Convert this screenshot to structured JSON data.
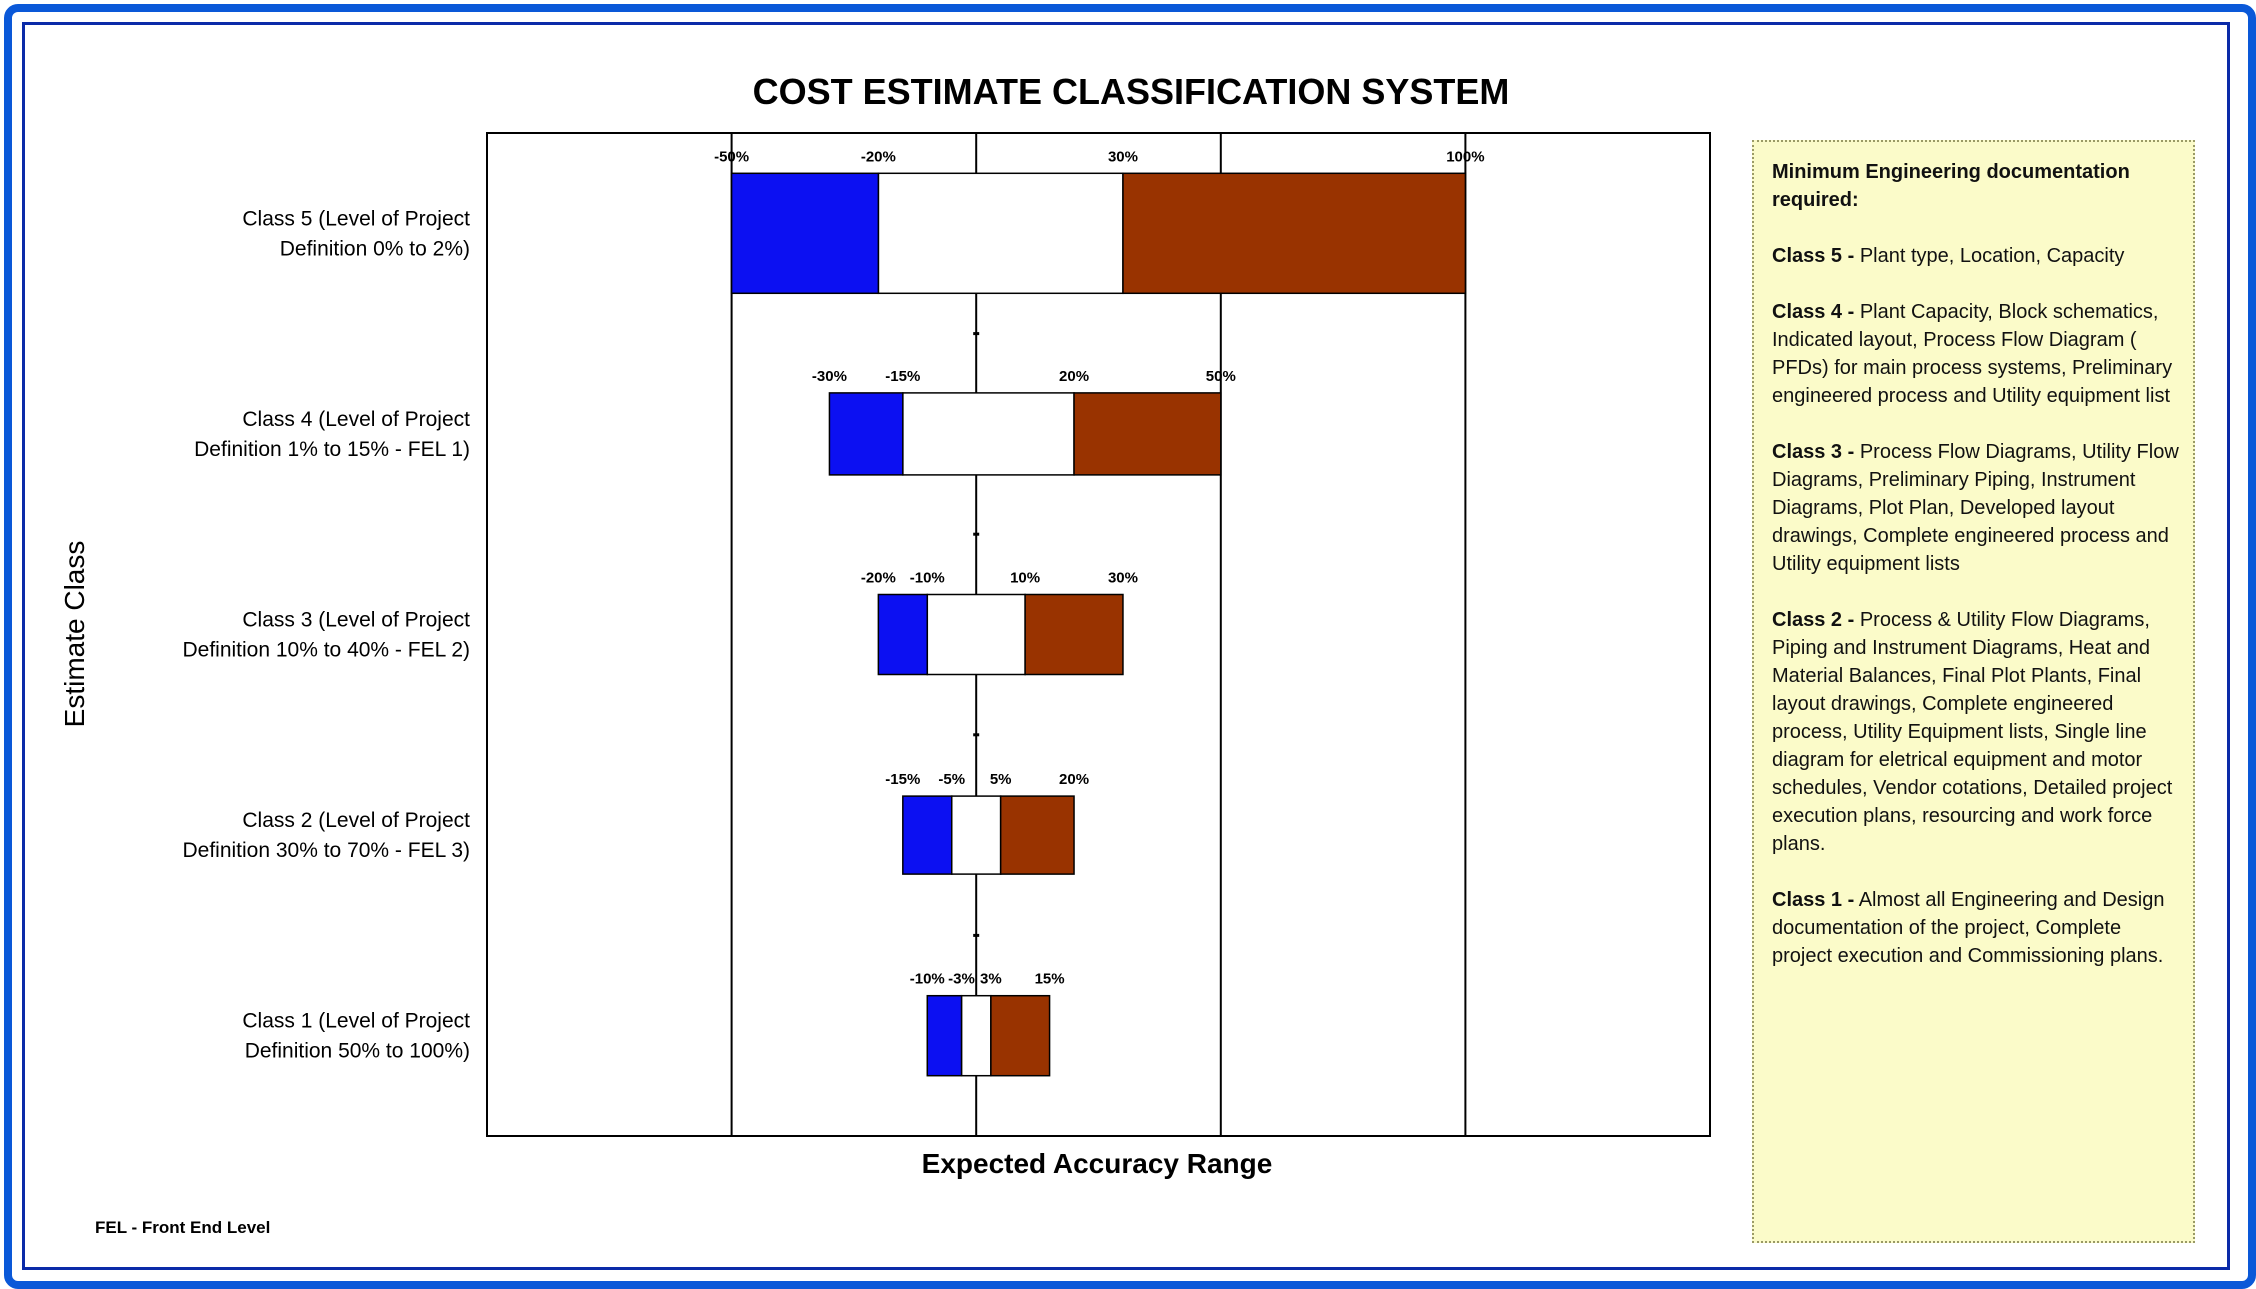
{
  "chart_data": {
    "type": "bar",
    "orientation": "horizontal",
    "title": "COST ESTIMATE CLASSIFICATION SYSTEM",
    "xlabel": "Expected Accuracy Range",
    "ylabel": "Estimate Class",
    "xlim": [
      -100,
      150
    ],
    "grid": "vertical lines",
    "categories": [
      "Class 5 (Level of Project Definition 0% to 2%)",
      "Class 4 (Level of Project Definition 1% to 15% - FEL 1)",
      "Class 3 (Level of Project Definition 10% to 40% - FEL 2)",
      "Class 2 (Level of Project Definition 30% to 70% - FEL 3)",
      "Class 1 (Level of Project Definition 50% to 100%)"
    ],
    "category_lines": [
      [
        "Class 5 (Level of Project",
        "Definition 0% to 2%)"
      ],
      [
        "Class 4 (Level of Project",
        "Definition 1% to 15% - FEL 1)"
      ],
      [
        "Class 3 (Level of Project",
        "Definition 10% to 40% - FEL 2)"
      ],
      [
        "Class 2 (Level of Project",
        "Definition 30% to 70% - FEL 3)"
      ],
      [
        "Class 1 (Level of Project",
        "Definition 50% to 100%)"
      ]
    ],
    "ranges": [
      {
        "low_min": -50,
        "low_max": -20,
        "high_min": 30,
        "high_max": 100,
        "labels": [
          "-50%",
          "-20%",
          "30%",
          "100%"
        ]
      },
      {
        "low_min": -30,
        "low_max": -15,
        "high_min": 20,
        "high_max": 50,
        "labels": [
          "-30%",
          "-15%",
          "20%",
          "50%"
        ]
      },
      {
        "low_min": -20,
        "low_max": -10,
        "high_min": 10,
        "high_max": 30,
        "labels": [
          "-20%",
          "-10%",
          "10%",
          "30%"
        ]
      },
      {
        "low_min": -15,
        "low_max": -5,
        "high_min": 5,
        "high_max": 20,
        "labels": [
          "-15%",
          "-5%",
          "5%",
          "20%"
        ]
      },
      {
        "low_min": -10,
        "low_max": -3,
        "high_min": 3,
        "high_max": 15,
        "labels": [
          "-10%",
          "-3%",
          "3%",
          "15%"
        ]
      }
    ],
    "colors": {
      "low": "#0c10f2",
      "high": "#993300",
      "middle": "#ffffff",
      "grid": "#000000"
    }
  },
  "notes": {
    "heading": "Minimum Engineering documentation required:",
    "items": [
      {
        "class": "Class 5 -",
        "text": "Plant type, Location, Capacity"
      },
      {
        "class": "Class 4 -",
        "text": "Plant Capacity, Block schematics, Indicated layout, Process Flow Diagram ( PFDs) for main process systems,  Preliminary engineered process and Utility equipment list"
      },
      {
        "class": "Class 3 -",
        "text": "Process Flow Diagrams, Utility Flow Diagrams,  Preliminary Piping, Instrument Diagrams, Plot Plan, Developed layout drawings, Complete engineered process and Utility equipment lists"
      },
      {
        "class": "Class 2 -",
        "text": "Process & Utility Flow Diagrams, Piping and Instrument Diagrams, Heat and Material Balances, Final Plot Plants, Final layout drawings, Complete engineered process, Utility Equipment lists, Single line diagram for eletrical equipment and motor schedules, Vendor cotations, Detailed project execution plans, resourcing and work force plans."
      },
      {
        "class": "Class 1 -",
        "text": "Almost all Engineering and Design documentation of the project, Complete project execution and Commissioning plans."
      }
    ]
  },
  "footnote": "FEL - Front End Level"
}
